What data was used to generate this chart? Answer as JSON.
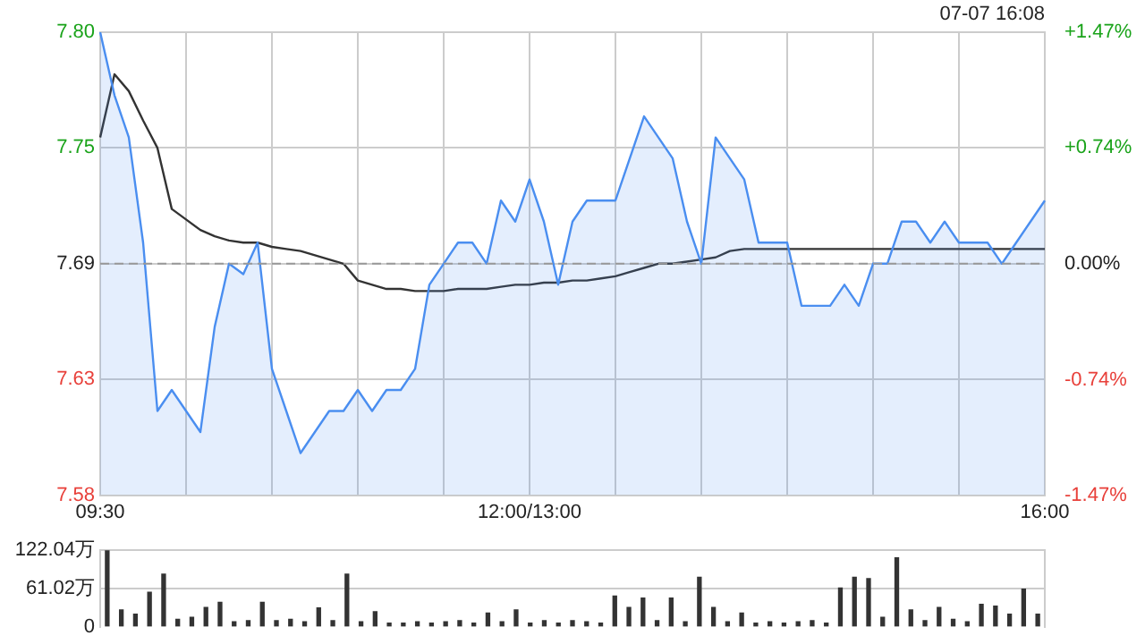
{
  "chart_data": [
    {
      "type": "area",
      "annotations": [
        "07-07 16:08"
      ],
      "categories": [
        "09:30",
        null,
        null,
        null,
        null,
        null,
        null,
        null,
        null,
        null,
        null,
        null,
        null,
        null,
        null,
        null,
        null,
        null,
        null,
        null,
        null,
        null,
        null,
        null,
        null,
        null,
        null,
        null,
        null,
        null,
        "12:00/13:00",
        null,
        null,
        null,
        null,
        null,
        null,
        null,
        null,
        null,
        null,
        null,
        null,
        null,
        null,
        null,
        null,
        null,
        null,
        null,
        null,
        null,
        null,
        null,
        null,
        null,
        null,
        null,
        null,
        null,
        null,
        null,
        null,
        null,
        null,
        null,
        "16:00"
      ],
      "ylim": [
        7.58,
        7.8
      ],
      "yticks": [
        7.58,
        {
          "value": 7.635,
          "label": "7.63"
        },
        7.69,
        {
          "value": 7.745,
          "label": "7.75"
        },
        {
          "value": 7.8,
          "label": "7.80"
        }
      ],
      "y2lim": [
        -1.47,
        1.47
      ],
      "y2ticks": [
        {
          "value": -1.47,
          "label": "-1.47%"
        },
        {
          "value": -0.74,
          "label": "-0.74%"
        },
        {
          "value": 0,
          "label": "0.00%"
        },
        {
          "value": 0.74,
          "label": "+0.74%"
        },
        {
          "value": 1.47,
          "label": "+1.47%"
        }
      ],
      "grid": true,
      "ref_lines": [
        {
          "axis": "y",
          "value": 7.69,
          "color": "#999999",
          "line_style": "dashed"
        }
      ],
      "series": [
        {
          "type": "area",
          "color": "#4a8ef0",
          "values": [
            7.8,
            7.77,
            7.75,
            7.7,
            7.62,
            7.63,
            7.62,
            7.61,
            7.66,
            7.69,
            7.685,
            7.7,
            7.64,
            7.62,
            7.6,
            7.61,
            7.62,
            7.62,
            7.63,
            7.62,
            7.63,
            7.63,
            7.64,
            7.68,
            7.69,
            7.7,
            7.7,
            7.69,
            7.72,
            7.71,
            7.73,
            7.71,
            7.68,
            7.71,
            7.72,
            7.72,
            7.72,
            7.74,
            7.76,
            7.75,
            7.74,
            7.71,
            7.69,
            7.75,
            7.74,
            7.73,
            7.7,
            7.7,
            7.7,
            7.67,
            7.67,
            7.67,
            7.68,
            7.67,
            7.69,
            7.69,
            7.71,
            7.71,
            7.7,
            7.71,
            7.7,
            7.7,
            7.7,
            7.69,
            7.7,
            7.71,
            7.72
          ]
        },
        {
          "type": "line",
          "color": "#333333",
          "values": [
            7.75,
            7.78,
            7.772,
            7.758,
            7.745,
            7.716,
            7.711,
            7.706,
            7.703,
            7.701,
            7.7,
            7.7,
            7.698,
            7.697,
            7.696,
            7.694,
            7.692,
            7.69,
            7.682,
            7.68,
            7.678,
            7.678,
            7.677,
            7.677,
            7.677,
            7.678,
            7.678,
            7.678,
            7.679,
            7.68,
            7.68,
            7.681,
            7.681,
            7.682,
            7.682,
            7.683,
            7.684,
            7.686,
            7.688,
            7.69,
            7.69,
            7.691,
            7.692,
            7.693,
            7.696,
            7.697,
            7.697,
            7.697,
            7.697,
            7.697,
            7.697,
            7.697,
            7.697,
            7.697,
            7.697,
            7.697,
            7.697,
            7.697,
            7.697,
            7.697,
            7.697,
            7.697,
            7.697,
            7.697,
            7.697,
            7.697,
            7.697
          ]
        }
      ]
    },
    {
      "type": "bar",
      "tick_labels": "y",
      "categories": [
        null,
        null,
        null,
        null,
        null,
        null,
        null,
        null,
        null,
        null,
        null,
        null,
        null,
        null,
        null,
        null,
        null,
        null,
        null,
        null,
        null,
        null,
        null,
        null,
        null,
        null,
        null,
        null,
        null,
        null,
        null,
        null,
        null,
        null,
        null,
        null,
        null,
        null,
        null,
        null,
        null,
        null,
        null,
        null,
        null,
        null,
        null,
        null,
        null,
        null,
        null,
        null,
        null,
        null,
        null,
        null,
        null,
        null,
        null,
        null,
        null,
        null,
        null,
        null,
        null,
        null,
        null
      ],
      "ylim": [
        0,
        122.04
      ],
      "yticks": [
        0,
        {
          "value": 61.02,
          "label": "61.02万"
        },
        {
          "value": 122.04,
          "label": "122.04万"
        }
      ],
      "grid": "y",
      "series": [
        {
          "color": "#333333",
          "values": [
            122,
            27,
            20,
            55,
            84,
            12,
            15,
            31,
            39,
            8,
            10,
            39,
            10,
            12,
            8,
            30,
            10,
            84,
            8,
            24,
            6,
            6,
            8,
            6,
            8,
            10,
            6,
            22,
            8,
            27,
            6,
            10,
            6,
            10,
            8,
            6,
            49,
            31,
            46,
            10,
            46,
            8,
            79,
            31,
            8,
            22,
            6,
            8,
            6,
            8,
            10,
            6,
            62,
            79,
            77,
            15,
            110,
            27,
            10,
            31,
            12,
            8,
            36,
            33,
            20,
            60,
            20
          ]
        }
      ]
    }
  ]
}
